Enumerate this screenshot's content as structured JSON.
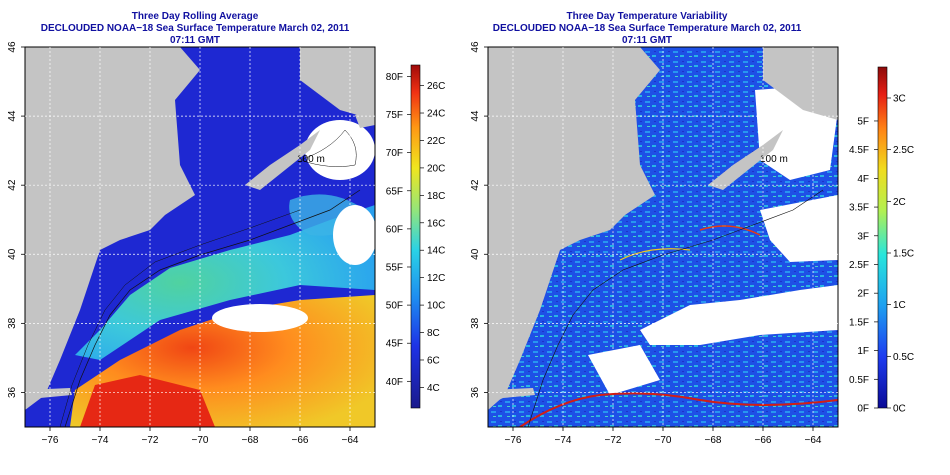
{
  "maps": [
    {
      "title": "Three Day Rolling Average",
      "subtitle": "DECLOUDED NOAA−18 Sea Surface Temperature March 02, 2011 07:11 GMT",
      "contour_label": "100 m",
      "colorbar": {
        "left_labels": [
          "4C",
          "6C",
          "8C",
          "10C",
          "12C",
          "14C",
          "16C",
          "18C",
          "20C",
          "22C",
          "24C",
          "26C"
        ],
        "left_values": [
          4,
          6,
          8,
          10,
          12,
          14,
          16,
          18,
          20,
          22,
          24,
          26
        ],
        "right_labels": [
          "40F",
          "45F",
          "50F",
          "55F",
          "60F",
          "65F",
          "70F",
          "75F",
          "80F"
        ],
        "right_values": [
          40,
          45,
          50,
          55,
          60,
          65,
          70,
          75,
          80
        ],
        "range_c": [
          2.5,
          27.5
        ]
      }
    },
    {
      "title": "Three Day Temperature Variability",
      "subtitle": "DECLOUDED NOAA−18 Sea Surface Temperature March 02, 2011 07:11 GMT",
      "contour_label": "100 m",
      "colorbar": {
        "left_labels": [
          "0C",
          "0.5C",
          "1C",
          "1.5C",
          "2C",
          "2.5C",
          "3C"
        ],
        "left_values": [
          0,
          0.5,
          1,
          1.5,
          2,
          2.5,
          3
        ],
        "right_labels": [
          "0F",
          "0.5F",
          "1F",
          "1.5F",
          "2F",
          "2.5F",
          "3F",
          "3.5F",
          "4F",
          "4.5F",
          "5F"
        ],
        "right_values": [
          0,
          0.5,
          1,
          1.5,
          2,
          2.5,
          3,
          3.5,
          4,
          4.5,
          5
        ],
        "range_c": [
          0,
          3.3
        ]
      }
    }
  ],
  "longitude_ticks": [
    "−76",
    "−74",
    "−72",
    "−70",
    "−68",
    "−66",
    "−64"
  ],
  "longitude_values": [
    -76,
    -74,
    -72,
    -70,
    -68,
    -66,
    -64
  ],
  "latitude_ticks": [
    "36",
    "38",
    "40",
    "42",
    "44",
    "46"
  ],
  "latitude_values": [
    36,
    38,
    40,
    42,
    44,
    46
  ],
  "lon_range": [
    -77,
    -63
  ],
  "lat_range": [
    35,
    46
  ],
  "colors": {
    "land": "#c4c4c4",
    "cloud": "#ffffff",
    "cold_water": "#1e28d2",
    "title": "#1010a0"
  }
}
